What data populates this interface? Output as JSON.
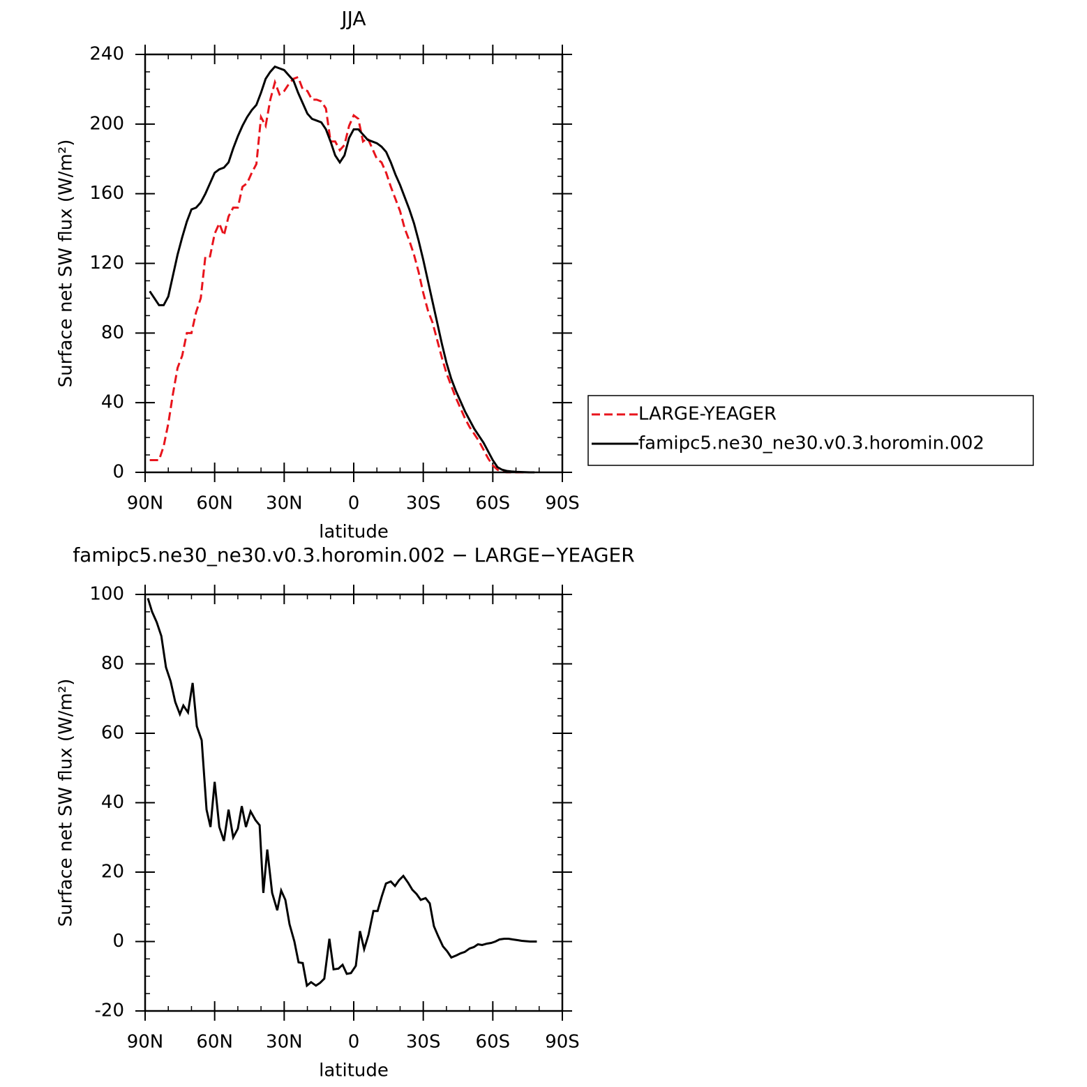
{
  "chart_data": [
    {
      "type": "line",
      "title": "JJA",
      "x_label": "latitude",
      "y_label": "Surface net SW flux (W/m²)",
      "x": [
        88,
        86,
        84,
        82,
        80,
        78,
        76,
        74,
        72,
        70,
        68,
        66,
        64,
        62,
        60,
        58,
        56,
        54,
        52,
        50,
        48,
        46,
        44,
        42,
        40,
        38,
        36,
        34,
        32,
        30,
        28,
        26,
        24,
        22,
        20,
        18,
        16,
        14,
        12,
        10,
        8,
        6,
        4,
        2,
        0,
        -2,
        -4,
        -6,
        -8,
        -10,
        -12,
        -14,
        -16,
        -18,
        -20,
        -22,
        -24,
        -26,
        -28,
        -30,
        -32,
        -34,
        -36,
        -38,
        -40,
        -42,
        -44,
        -46,
        -48,
        -50,
        -52,
        -54,
        -56,
        -58,
        -60,
        -62,
        -64,
        -66,
        -68,
        -70,
        -72,
        -74,
        -76,
        -78
      ],
      "series": [
        {
          "name": "LARGE-YEAGER",
          "color": "#e8141c",
          "line_style": "dashed",
          "values": [
            7,
            7,
            7,
            15,
            28,
            45,
            60,
            67,
            80,
            80,
            92,
            100,
            124,
            124,
            137,
            143,
            136,
            147,
            152,
            152,
            164,
            166,
            172,
            177,
            204,
            199,
            214,
            224,
            217,
            219,
            223,
            226,
            227,
            220,
            219,
            214,
            214,
            213,
            209,
            190,
            190,
            185,
            188,
            199,
            205,
            203,
            190,
            192,
            186,
            180,
            178,
            172,
            164,
            157,
            150,
            140,
            133,
            125,
            115,
            103,
            93,
            86,
            76,
            66,
            57,
            50,
            43,
            37,
            31,
            26,
            22,
            18,
            13,
            8,
            4,
            1.5,
            0.5,
            0,
            0,
            0,
            0,
            0,
            0,
            0
          ]
        },
        {
          "name": "famipc5.ne30_ne30.v0.3.horomin.002",
          "color": "#000000",
          "line_style": "solid",
          "values": [
            104,
            100,
            96,
            96,
            101,
            113,
            125,
            135,
            144,
            151,
            152,
            155,
            160,
            166,
            172,
            174,
            175,
            178,
            186,
            193,
            199,
            204,
            208,
            211,
            218,
            226,
            230,
            233,
            232,
            231,
            228,
            225,
            218,
            212,
            206,
            203,
            202,
            201,
            197,
            190,
            182,
            178,
            182,
            192,
            197,
            197,
            194,
            191,
            190,
            189,
            187,
            184,
            178,
            171,
            165,
            158,
            151,
            143,
            133,
            122,
            110,
            98,
            86,
            74,
            63,
            54,
            47,
            41,
            35,
            30,
            25,
            21,
            17,
            12,
            7,
            3,
            1.5,
            0.8,
            0.5,
            0.3,
            0.2,
            0.1,
            0,
            0
          ]
        }
      ],
      "xlim": [
        90,
        -90
      ],
      "xticks": [
        {
          "value": 90,
          "label": "90N"
        },
        {
          "value": 60,
          "label": "60N"
        },
        {
          "value": 30,
          "label": "30N"
        },
        0,
        {
          "value": -30,
          "label": "30S"
        },
        {
          "value": -60,
          "label": "60S"
        },
        {
          "value": -90,
          "label": "90S"
        }
      ],
      "ylim": [
        0,
        240
      ],
      "yticks": [
        0,
        40,
        80,
        120,
        160,
        200,
        240
      ],
      "legend": "right"
    },
    {
      "type": "line",
      "title": "famipc5.ne30_ne30.v0.3.horomin.002 − LARGE−YEAGER",
      "x_label": "latitude",
      "y_label": "Surface net SW flux (W/m²)",
      "x": [
        88.8,
        87,
        85,
        83,
        81,
        79,
        77,
        75,
        73.5,
        71.5,
        69.5,
        67.7,
        65.6,
        63.5,
        61.8,
        60,
        58,
        56,
        54,
        52,
        50,
        48.3,
        46.5,
        44.5,
        42.4,
        40.6,
        39,
        37.3,
        35.2,
        33,
        31.3,
        29.5,
        27.7,
        25.6,
        23.8,
        22,
        20.2,
        18.4,
        16.3,
        14.5,
        12.7,
        10.5,
        8.7,
        6.6,
        4.8,
        3,
        1.2,
        -0.9,
        -2.7,
        -4.5,
        -6.4,
        -8.5,
        -10.3,
        -12.1,
        -13.9,
        -16,
        -17.8,
        -19.6,
        -21.4,
        -23.5,
        -25.3,
        -27.1,
        -28.9,
        -31,
        -32.8,
        -34.6,
        -36.4,
        -38.5,
        -40.3,
        -42.1,
        -44.3,
        -46.1,
        -47.9,
        -50,
        -51.8,
        -53.6,
        -55.4,
        -57.5,
        -59.3,
        -61.1,
        -62.9,
        -65,
        -66.8,
        -68.6,
        -70.7,
        -72.5,
        -74.3,
        -76.1,
        -78.2,
        -79
      ],
      "values": [
        98.9,
        95,
        92,
        88,
        79,
        75,
        69,
        65.5,
        68,
        66,
        74.5,
        62,
        58,
        38,
        33,
        46,
        33,
        29,
        38,
        30,
        32.5,
        39,
        33,
        37.5,
        35,
        33.5,
        14,
        26.5,
        14,
        9,
        14.7,
        12,
        5,
        0,
        -6,
        -6.2,
        -12.7,
        -11.7,
        -12.7,
        -11.9,
        -10.7,
        0.8,
        -8,
        -7.8,
        -6.7,
        -9.3,
        -9.1,
        -7,
        3,
        -2.2,
        2,
        8.8,
        8.8,
        13,
        16.7,
        17.3,
        16,
        17.7,
        18.9,
        16.9,
        14.9,
        13.7,
        12,
        12.5,
        11,
        4.4,
        1.6,
        -1.4,
        -2.8,
        -4.6,
        -4,
        -3.4,
        -3,
        -2,
        -1.6,
        -0.8,
        -1,
        -0.6,
        -0.4,
        0,
        0.6,
        0.8,
        0.8,
        0.6,
        0.4,
        0.2,
        0.1,
        0,
        0,
        0
      ],
      "color": "#000000",
      "xlim": [
        90,
        -90
      ],
      "xticks": [
        {
          "value": 90,
          "label": "90N"
        },
        {
          "value": 60,
          "label": "60N"
        },
        {
          "value": 30,
          "label": "30N"
        },
        0,
        {
          "value": -30,
          "label": "30S"
        },
        {
          "value": -60,
          "label": "60S"
        },
        {
          "value": -90,
          "label": "90S"
        }
      ],
      "ylim": [
        -20,
        100
      ],
      "yticks": [
        -20,
        0,
        20,
        40,
        60,
        80,
        100
      ]
    }
  ]
}
